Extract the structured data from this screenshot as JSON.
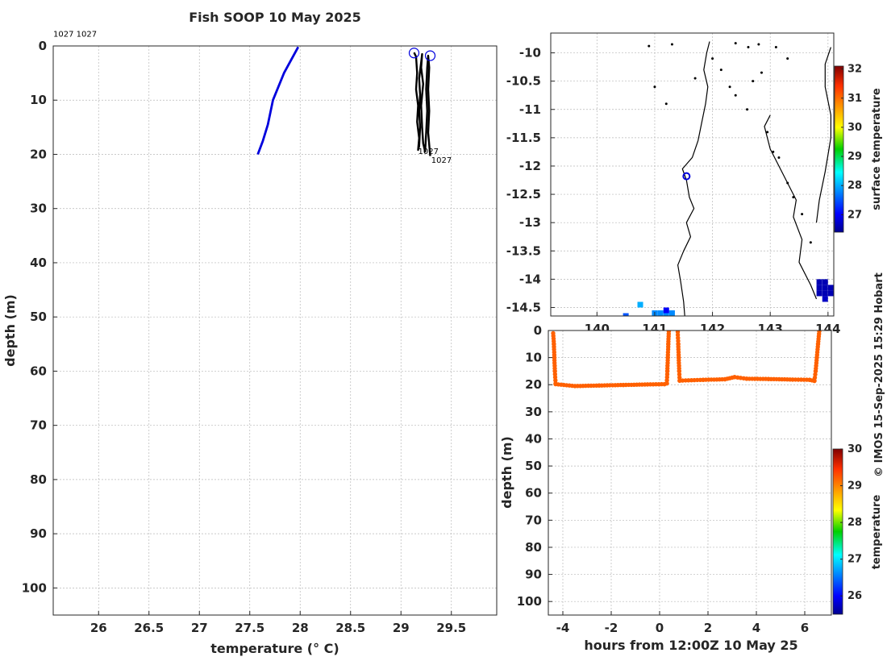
{
  "title": "Fish SOOP 10 May 2025",
  "credit": "© IMOS 15-Sep-2025 15:29 Hobart",
  "chart_data": [
    {
      "id": "profile",
      "type": "line",
      "xlabel": "temperature (° C)",
      "ylabel": "depth (m)",
      "xlim": [
        25.55,
        29.95
      ],
      "ylim": [
        0,
        105
      ],
      "y_reversed": true,
      "grid": true,
      "xticks": [
        26,
        26.5,
        27,
        27.5,
        28,
        28.5,
        29,
        29.5
      ],
      "xtick_labels": [
        "26",
        "26.5",
        "27",
        "27.5",
        "28",
        "28.5",
        "29",
        "29.5"
      ],
      "yticks": [
        0,
        10,
        20,
        30,
        40,
        50,
        60,
        70,
        80,
        90,
        100
      ],
      "ytick_labels": [
        "0",
        "10",
        "20",
        "30",
        "40",
        "50",
        "60",
        "70",
        "80",
        "90",
        "100"
      ],
      "series": [
        {
          "color": "#0000dd",
          "points": [
            [
              27.58,
              20
            ],
            [
              27.63,
              17.5
            ],
            [
              27.68,
              14.5
            ],
            [
              27.73,
              10
            ],
            [
              27.84,
              5
            ],
            [
              27.98,
              0.2
            ]
          ]
        },
        {
          "color": "#000000",
          "points": [
            [
              29.13,
              1.2
            ],
            [
              29.15,
              2
            ],
            [
              29.16,
              5
            ],
            [
              29.15,
              8
            ],
            [
              29.17,
              11
            ],
            [
              29.16,
              14
            ],
            [
              29.18,
              17
            ],
            [
              29.17,
              19.2
            ],
            [
              29.18,
              18.5
            ],
            [
              29.19,
              15
            ],
            [
              29.18,
              12
            ],
            [
              29.19,
              9
            ],
            [
              29.18,
              6
            ],
            [
              29.2,
              3
            ],
            [
              29.21,
              1.5
            ],
            [
              29.2,
              4
            ],
            [
              29.22,
              7
            ],
            [
              29.2,
              11
            ],
            [
              29.21,
              15
            ],
            [
              29.22,
              18
            ],
            [
              29.24,
              19.5
            ],
            [
              29.25,
              16
            ],
            [
              29.26,
              12
            ],
            [
              29.25,
              8
            ],
            [
              29.26,
              4
            ],
            [
              29.27,
              1.8
            ],
            [
              29.28,
              4
            ],
            [
              29.27,
              8
            ],
            [
              29.28,
              12
            ],
            [
              29.27,
              16
            ],
            [
              29.29,
              20.3
            ]
          ]
        }
      ],
      "markers": [
        {
          "x": 29.13,
          "y": 1.3,
          "color": "#0000dd"
        },
        {
          "x": 29.29,
          "y": 1.8,
          "color": "#0000dd"
        }
      ],
      "annotations": [
        {
          "text": "1027 1027",
          "x": 25.55,
          "y": -2.3
        },
        {
          "text": "1027",
          "x": 29.17,
          "y": 19.3
        },
        {
          "text": "1027",
          "x": 29.3,
          "y": 21
        }
      ]
    },
    {
      "id": "map",
      "type": "scatter",
      "xlim": [
        139.2,
        144.1
      ],
      "ylim": [
        -14.65,
        -9.65
      ],
      "grid": true,
      "xticks": [
        140,
        141,
        142,
        143,
        144
      ],
      "xtick_labels": [
        "140",
        "141",
        "142",
        "143",
        "144"
      ],
      "yticks": [
        -10,
        -10.5,
        -11,
        -11.5,
        -12,
        -12.5,
        -13,
        -13.5,
        -14,
        -14.5
      ],
      "ytick_labels": [
        "-10",
        "-10.5",
        "-11",
        "-11.5",
        "-12",
        "-12.5",
        "-13",
        "-13.5",
        "-14",
        "-14.5"
      ],
      "coastline": [
        [
          141.95,
          -9.8
        ],
        [
          141.9,
          -10
        ],
        [
          141.85,
          -10.3
        ],
        [
          141.92,
          -10.6
        ],
        [
          141.88,
          -10.9
        ],
        [
          141.82,
          -11.2
        ],
        [
          141.75,
          -11.55
        ],
        [
          141.65,
          -11.85
        ],
        [
          141.48,
          -12.05
        ],
        [
          141.55,
          -12.25
        ],
        [
          141.6,
          -12.55
        ],
        [
          141.68,
          -12.75
        ],
        [
          141.55,
          -13.0
        ],
        [
          141.62,
          -13.25
        ],
        [
          141.5,
          -13.5
        ],
        [
          141.4,
          -13.75
        ],
        [
          141.45,
          -14.05
        ],
        [
          141.5,
          -14.4
        ],
        [
          141.52,
          -14.65
        ]
      ],
      "coastline_east": [
        [
          143.0,
          -11.1
        ],
        [
          142.9,
          -11.3
        ],
        [
          143.0,
          -11.7
        ],
        [
          143.25,
          -12.2
        ],
        [
          143.45,
          -12.6
        ],
        [
          143.4,
          -12.9
        ],
        [
          143.55,
          -13.3
        ],
        [
          143.5,
          -13.7
        ],
        [
          143.7,
          -14.1
        ],
        [
          143.8,
          -14.35
        ]
      ],
      "coastline_far": [
        [
          144.05,
          -9.9
        ],
        [
          143.95,
          -10.2
        ],
        [
          143.95,
          -10.6
        ],
        [
          144.05,
          -11.1
        ],
        [
          144.05,
          -11.5
        ],
        [
          143.95,
          -12.1
        ],
        [
          143.85,
          -12.6
        ],
        [
          143.8,
          -13.0
        ]
      ],
      "islands": [
        [
          140.9,
          -9.88
        ],
        [
          141.3,
          -9.85
        ],
        [
          142.4,
          -9.83
        ],
        [
          142.62,
          -9.9
        ],
        [
          142.8,
          -9.85
        ],
        [
          143.1,
          -9.9
        ],
        [
          143.3,
          -10.1
        ],
        [
          142.0,
          -10.1
        ],
        [
          142.15,
          -10.3
        ],
        [
          142.3,
          -10.6
        ],
        [
          142.4,
          -10.75
        ],
        [
          142.6,
          -11.0
        ],
        [
          142.7,
          -10.5
        ],
        [
          142.85,
          -10.35
        ],
        [
          142.95,
          -11.4
        ],
        [
          143.05,
          -11.75
        ],
        [
          143.15,
          -11.85
        ],
        [
          143.3,
          -12.3
        ],
        [
          143.4,
          -12.55
        ],
        [
          143.55,
          -12.85
        ],
        [
          143.7,
          -13.35
        ],
        [
          141.0,
          -10.6
        ],
        [
          141.2,
          -10.9
        ],
        [
          141.7,
          -10.45
        ]
      ],
      "track": [
        {
          "x": 141.55,
          "y": -12.18,
          "color": "#0000dd"
        }
      ],
      "sst_pixels": [
        {
          "x": 143.85,
          "y": -14.05,
          "value": 26.6
        },
        {
          "x": 143.95,
          "y": -14.05,
          "value": 26.6
        },
        {
          "x": 143.85,
          "y": -14.15,
          "value": 26.6
        },
        {
          "x": 143.95,
          "y": -14.15,
          "value": 26.6
        },
        {
          "x": 144.05,
          "y": -14.15,
          "value": 26.6
        },
        {
          "x": 143.85,
          "y": -14.25,
          "value": 26.6
        },
        {
          "x": 143.95,
          "y": -14.25,
          "value": 26.6
        },
        {
          "x": 144.05,
          "y": -14.25,
          "value": 26.6
        },
        {
          "x": 143.95,
          "y": -14.35,
          "value": 26.7
        },
        {
          "x": 141.0,
          "y": -14.6,
          "value": 27.8
        },
        {
          "x": 141.1,
          "y": -14.6,
          "value": 27.8
        },
        {
          "x": 141.2,
          "y": -14.6,
          "value": 27.8
        },
        {
          "x": 141.3,
          "y": -14.6,
          "value": 27.8
        },
        {
          "x": 141.2,
          "y": -14.55,
          "value": 27.0
        },
        {
          "x": 140.75,
          "y": -14.45,
          "value": 28.0
        },
        {
          "x": 140.5,
          "y": -14.65,
          "value": 27.5
        }
      ],
      "colorbar": {
        "label": "surface temperature",
        "range": [
          26.4,
          32.1
        ],
        "ticks": [
          27,
          28,
          29,
          30,
          31,
          32
        ],
        "tick_labels": [
          "27",
          "28",
          "29",
          "30",
          "31",
          "32"
        ]
      }
    },
    {
      "id": "timeseries",
      "type": "scatter",
      "xlabel": "hours from 12:00Z 10 May 25",
      "ylabel": "depth (m)",
      "xlim": [
        -4.6,
        7.1
      ],
      "ylim": [
        0,
        105
      ],
      "y_reversed": true,
      "grid": true,
      "xticks": [
        -4,
        -2,
        0,
        2,
        4,
        6
      ],
      "xtick_labels": [
        "-4",
        "-2",
        "0",
        "2",
        "4",
        "6"
      ],
      "yticks": [
        0,
        10,
        20,
        30,
        40,
        50,
        60,
        70,
        80,
        90,
        100
      ],
      "ytick_labels": [
        "0",
        "10",
        "20",
        "30",
        "40",
        "50",
        "60",
        "70",
        "80",
        "90",
        "100"
      ],
      "point_color_value": 29.2,
      "segments": [
        [
          [
            -4.4,
            1
          ],
          [
            -4.37,
            5
          ],
          [
            -4.35,
            10
          ],
          [
            -4.33,
            15
          ],
          [
            -4.3,
            19.5
          ]
        ],
        [
          [
            -4.3,
            19.8
          ],
          [
            -3.5,
            20.5
          ],
          [
            -2.5,
            20.3
          ],
          [
            -1.5,
            20.1
          ],
          [
            -0.5,
            19.9
          ],
          [
            0.2,
            19.8
          ],
          [
            0.3,
            19.5
          ]
        ],
        [
          [
            0.3,
            19.5
          ],
          [
            0.32,
            15
          ],
          [
            0.34,
            10
          ],
          [
            0.36,
            5
          ],
          [
            0.38,
            0.3
          ]
        ],
        [
          [
            0.75,
            0.5
          ],
          [
            0.77,
            5
          ],
          [
            0.79,
            10
          ],
          [
            0.81,
            15
          ],
          [
            0.83,
            18.5
          ]
        ],
        [
          [
            0.83,
            18.5
          ],
          [
            1.8,
            18.2
          ],
          [
            2.7,
            18
          ],
          [
            3.1,
            17.2
          ],
          [
            3.6,
            17.8
          ],
          [
            4.5,
            17.9
          ],
          [
            5.5,
            18.1
          ],
          [
            6.2,
            18.2
          ],
          [
            6.4,
            18.6
          ]
        ],
        [
          [
            6.4,
            18.6
          ],
          [
            6.45,
            15
          ],
          [
            6.5,
            10
          ],
          [
            6.55,
            5
          ],
          [
            6.6,
            0.3
          ]
        ]
      ],
      "colorbar": {
        "label": "temperature",
        "range": [
          25.5,
          30.0
        ],
        "ticks": [
          26,
          27,
          28,
          29,
          30
        ],
        "tick_labels": [
          "26",
          "27",
          "28",
          "29",
          "30"
        ]
      }
    }
  ]
}
